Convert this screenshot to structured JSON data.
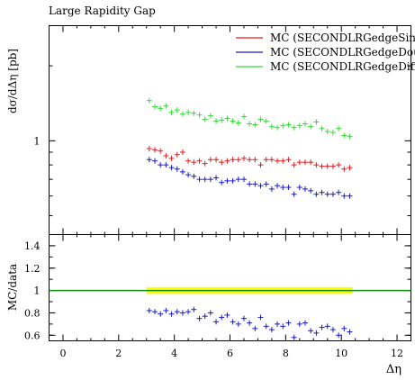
{
  "chart_data": [
    {
      "type": "scatter",
      "title": "Large Rapidity Gap",
      "ylabel": "dσ/dΔη [pb]",
      "xlabel": "",
      "xlim": [
        -0.5,
        12.5
      ],
      "ylim": [
        0.42,
        2.9
      ],
      "yscale": "log",
      "yticks": [
        1
      ],
      "grid": false,
      "legend_position": "top-right",
      "series": [
        {
          "name": "MC (SECONDLRGedgeSingleDiffraction)",
          "color": "#e41a1c",
          "x": [
            3.1,
            3.3,
            3.5,
            3.7,
            3.9,
            4.1,
            4.3,
            4.5,
            4.7,
            4.9,
            5.1,
            5.3,
            5.5,
            5.7,
            5.9,
            6.1,
            6.3,
            6.5,
            6.7,
            6.9,
            7.1,
            7.3,
            7.5,
            7.7,
            7.9,
            8.1,
            8.3,
            8.5,
            8.7,
            8.9,
            9.1,
            9.3,
            9.5,
            9.7,
            9.9,
            10.1,
            10.3
          ],
          "y": [
            0.93,
            0.92,
            0.91,
            0.87,
            0.85,
            0.88,
            0.9,
            0.83,
            0.82,
            0.83,
            0.81,
            0.84,
            0.84,
            0.82,
            0.83,
            0.84,
            0.84,
            0.85,
            0.84,
            0.84,
            0.8,
            0.84,
            0.84,
            0.83,
            0.83,
            0.84,
            0.8,
            0.82,
            0.82,
            0.82,
            0.8,
            0.79,
            0.79,
            0.79,
            0.8,
            0.77,
            0.78
          ]
        },
        {
          "name": "MC (SECONDLRGedgeDoubleDiffraction)",
          "color": "#1a1acc",
          "x": [
            3.1,
            3.3,
            3.5,
            3.7,
            3.9,
            4.1,
            4.3,
            4.5,
            4.7,
            4.9,
            5.1,
            5.3,
            5.5,
            5.7,
            5.9,
            6.1,
            6.3,
            6.5,
            6.7,
            6.9,
            7.1,
            7.3,
            7.5,
            7.7,
            7.9,
            8.1,
            8.3,
            8.5,
            8.7,
            8.9,
            9.1,
            9.3,
            9.5,
            9.7,
            9.9,
            10.1,
            10.3
          ],
          "y": [
            0.84,
            0.83,
            0.8,
            0.8,
            0.78,
            0.77,
            0.75,
            0.73,
            0.72,
            0.7,
            0.7,
            0.7,
            0.71,
            0.68,
            0.69,
            0.69,
            0.7,
            0.7,
            0.67,
            0.67,
            0.66,
            0.67,
            0.64,
            0.66,
            0.65,
            0.65,
            0.61,
            0.65,
            0.64,
            0.63,
            0.61,
            0.62,
            0.61,
            0.61,
            0.62,
            0.6,
            0.6
          ]
        },
        {
          "name": "MC (SECONDLRGedgeDiffraction)",
          "color": "#33dd33",
          "x": [
            3.1,
            3.3,
            3.5,
            3.7,
            3.9,
            4.1,
            4.3,
            4.5,
            4.7,
            4.9,
            5.1,
            5.3,
            5.5,
            5.7,
            5.9,
            6.1,
            6.3,
            6.5,
            6.7,
            6.9,
            7.1,
            7.3,
            7.5,
            7.7,
            7.9,
            8.1,
            8.3,
            8.5,
            8.7,
            8.9,
            9.1,
            9.3,
            9.5,
            9.7,
            9.9,
            10.1,
            10.3
          ],
          "y": [
            1.45,
            1.37,
            1.35,
            1.38,
            1.3,
            1.33,
            1.28,
            1.3,
            1.29,
            1.27,
            1.22,
            1.26,
            1.2,
            1.21,
            1.23,
            1.2,
            1.18,
            1.25,
            1.17,
            1.16,
            1.22,
            1.2,
            1.14,
            1.13,
            1.15,
            1.16,
            1.13,
            1.15,
            1.17,
            1.14,
            1.19,
            1.12,
            1.09,
            1.08,
            1.12,
            1.05,
            1.04
          ]
        }
      ]
    },
    {
      "type": "scatter",
      "title": "",
      "xlabel": "Δη",
      "ylabel": "MC/data",
      "xlim": [
        -0.5,
        12.5
      ],
      "ylim": [
        0.55,
        1.5
      ],
      "xticks": [
        0,
        2,
        4,
        6,
        8,
        10,
        12
      ],
      "yticks": [
        0.6,
        0.8,
        1,
        1.2,
        1.4
      ],
      "reference_line": 1,
      "reference_band": {
        "x": [
          3.0,
          10.4
        ],
        "y": [
          0.97,
          1.03
        ],
        "color": "#ffff00"
      },
      "reference_color": "#118811",
      "series": [
        {
          "name": "MC (SECONDLRGedgeDoubleDiffraction)",
          "color": "#1a1acc",
          "x": [
            3.1,
            3.3,
            3.5,
            3.7,
            3.9,
            4.1,
            4.3,
            4.5,
            4.7,
            4.9,
            5.1,
            5.3,
            5.5,
            5.7,
            5.9,
            6.1,
            6.3,
            6.5,
            6.7,
            6.9,
            7.1,
            7.3,
            7.5,
            7.7,
            7.9,
            8.1,
            8.3,
            8.5,
            8.7,
            8.9,
            9.1,
            9.3,
            9.5,
            9.7,
            9.9,
            10.1,
            10.3
          ],
          "y": [
            0.82,
            0.81,
            0.79,
            0.82,
            0.79,
            0.81,
            0.8,
            0.81,
            0.83,
            0.75,
            0.77,
            0.8,
            0.72,
            0.76,
            0.78,
            0.72,
            0.7,
            0.75,
            0.71,
            0.66,
            0.76,
            0.68,
            0.65,
            0.7,
            0.68,
            0.71,
            0.58,
            0.7,
            0.71,
            0.64,
            0.62,
            0.67,
            0.68,
            0.65,
            0.6,
            0.66,
            0.63
          ]
        }
      ]
    }
  ]
}
